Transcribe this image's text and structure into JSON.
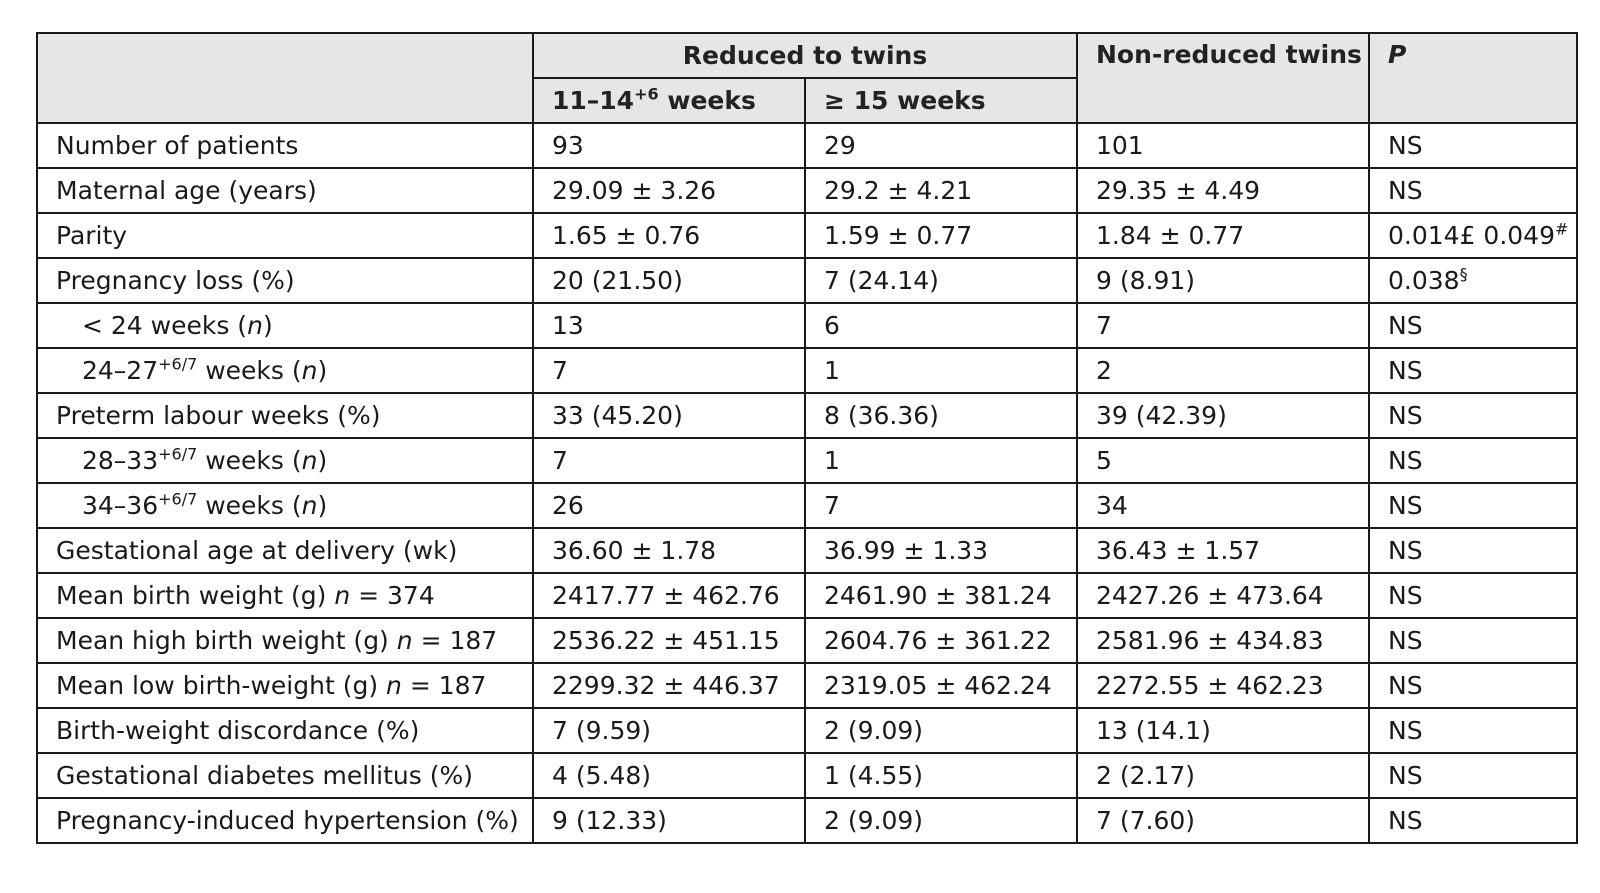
{
  "header": {
    "group_reduced": "Reduced to twins",
    "sub_early": "11–14",
    "sub_early_sup": "+6",
    "sub_early_suffix": " weeks",
    "sub_late": "≥ 15 weeks",
    "non_reduced": "Non-reduced twins",
    "p": "P"
  },
  "rows": [
    {
      "label": "Number of patients",
      "early": "93",
      "late": "29",
      "non": "101",
      "p": "NS"
    },
    {
      "label": "Maternal age (years)",
      "early": "29.09 ± 3.26",
      "late": "29.2 ± 4.21",
      "non": "29.35 ± 4.49",
      "p": "NS"
    },
    {
      "label": "Parity",
      "early": "1.65 ± 0.76",
      "late": "1.59 ± 0.77",
      "non": "1.84 ± 0.77",
      "p": "0.014£ 0.049",
      "p_sup": "#"
    },
    {
      "label": "Pregnancy loss (%)",
      "early": "20 (21.50)",
      "late": "7 (24.14)",
      "non": "9 (8.91)",
      "p": "0.038",
      "p_sup": "§"
    },
    {
      "label_pre": "< 24 weeks (",
      "label_it": "n",
      "label_post": ")",
      "indent": true,
      "early": "13",
      "late": "6",
      "non": "7",
      "p": "NS"
    },
    {
      "label_pre": "24–27",
      "label_sup": "+6/7",
      "label_mid": " weeks (",
      "label_it": "n",
      "label_post": ")",
      "indent": true,
      "early": "7",
      "late": "1",
      "non": "2",
      "p": "NS"
    },
    {
      "label": "Preterm labour weeks (%)",
      "early": "33 (45.20)",
      "late": "8 (36.36)",
      "non": "39 (42.39)",
      "p": "NS"
    },
    {
      "label_pre": "28–33",
      "label_sup": "+6/7",
      "label_mid": " weeks (",
      "label_it": "n",
      "label_post": ")",
      "indent": true,
      "early": "7",
      "late": "1",
      "non": "5",
      "p": "NS"
    },
    {
      "label_pre": "34–36",
      "label_sup": "+6/7",
      "label_mid": " weeks (",
      "label_it": "n",
      "label_post": ")",
      "indent": true,
      "early": "26",
      "late": "7",
      "non": "34",
      "p": "NS"
    },
    {
      "label": "Gestational age at delivery (wk)",
      "early": "36.60 ± 1.78",
      "late": "36.99 ± 1.33",
      "non": "36.43 ± 1.57",
      "p": "NS"
    },
    {
      "label_pre": "Mean birth weight (g) ",
      "label_it": "n",
      "label_post": " = 374",
      "early": "2417.77 ± 462.76",
      "late": "2461.90 ± 381.24",
      "non": "2427.26 ± 473.64",
      "p": "NS"
    },
    {
      "label_pre": "Mean high birth weight (g) ",
      "label_it": "n",
      "label_post": " = 187",
      "early": "2536.22 ± 451.15",
      "late": "2604.76 ± 361.22",
      "non": "2581.96 ± 434.83",
      "p": "NS"
    },
    {
      "label_pre": "Mean low birth-weight (g) ",
      "label_it": "n",
      "label_post": " = 187",
      "early": "2299.32 ± 446.37",
      "late": "2319.05 ± 462.24",
      "non": "2272.55 ± 462.23",
      "p": "NS"
    },
    {
      "label": "Birth-weight discordance (%)",
      "early": "7 (9.59)",
      "late": "2 (9.09)",
      "non": "13 (14.1)",
      "p": "NS"
    },
    {
      "label": "Gestational diabetes mellitus (%)",
      "early": "4 (5.48)",
      "late": "1 (4.55)",
      "non": "2 (2.17)",
      "p": "NS"
    },
    {
      "label": "Pregnancy-induced hypertension (%)",
      "early": "9 (12.33)",
      "late": "2 (9.09)",
      "non": "7 (7.60)",
      "p": "NS"
    }
  ]
}
